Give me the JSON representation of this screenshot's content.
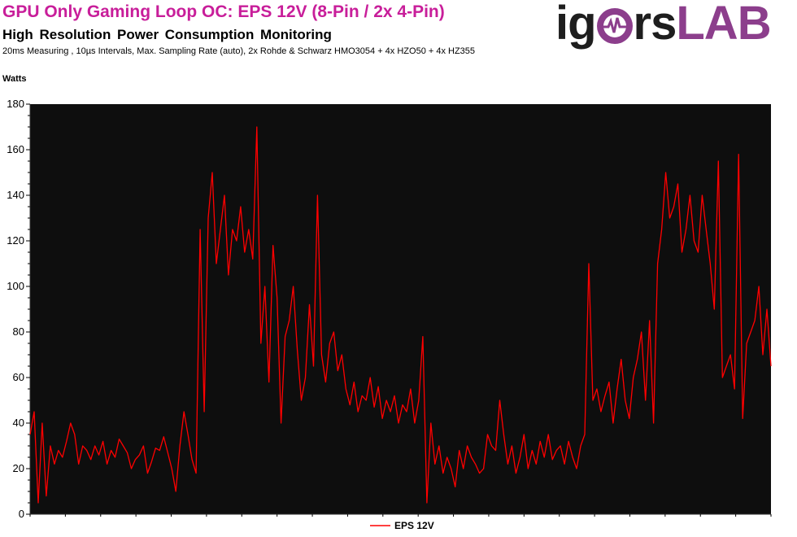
{
  "header": {
    "title": "GPU Only Gaming Loop OC: EPS 12V (8-Pin / 2x 4-Pin)",
    "subtitle": "High Resolution Power Consumption Monitoring",
    "details": "20ms Measuring , 10µs Intervals, Max. Sampling Rate (auto),  2x Rohde & Schwarz HMO3054 + 4x HZO50 + 4x HZ355"
  },
  "logo": {
    "text_left": "ig",
    "text_mid": "rs",
    "text_right": "LAB"
  },
  "colors": {
    "title": "#c81e9a",
    "plot_bg": "#0e0e0e",
    "series": "#ff0000",
    "logo_accent": "#8c3e8c"
  },
  "chart_data": {
    "type": "line",
    "title": "GPU Only Gaming Loop OC: EPS 12V (8-Pin / 2x 4-Pin)",
    "ylabel": "Watts",
    "xlabel": "",
    "ylim": [
      0,
      180
    ],
    "yticks": [
      0,
      20,
      40,
      60,
      80,
      100,
      120,
      140,
      160,
      180
    ],
    "grid": false,
    "legend": "bottom-center",
    "series": [
      {
        "name": "EPS 12V",
        "color": "#ff0000",
        "x": [
          0,
          5,
          10,
          15,
          20,
          25,
          30,
          35,
          40,
          45,
          50,
          55,
          60,
          65,
          70,
          75,
          80,
          85,
          90,
          95,
          100,
          105,
          110,
          115,
          120,
          125,
          130,
          135,
          140,
          145,
          150,
          155,
          160,
          165,
          170,
          175,
          180,
          185,
          190,
          195,
          200,
          205,
          210,
          215,
          220,
          225,
          230,
          235,
          240,
          245,
          250,
          255,
          260,
          265,
          270,
          275,
          280,
          285,
          290,
          295,
          300,
          305,
          310,
          315,
          320,
          325,
          330,
          335,
          340,
          345,
          350,
          355,
          360,
          365,
          370,
          375,
          380,
          385,
          390,
          395,
          400,
          405,
          410,
          415,
          420,
          425,
          430,
          435,
          440,
          445,
          450,
          455,
          460,
          465,
          470,
          475,
          480,
          485,
          490,
          495,
          500,
          505,
          510,
          515,
          520,
          525,
          530,
          535,
          540,
          545,
          550,
          555,
          560,
          565,
          570,
          575,
          580,
          585,
          590,
          595,
          600,
          605,
          610,
          615,
          620,
          625,
          630,
          635,
          640,
          645,
          650,
          655,
          660,
          665,
          670,
          675,
          680,
          685,
          690,
          695,
          700,
          705,
          710,
          715,
          720,
          725,
          730,
          735,
          740,
          745,
          750,
          755,
          760,
          765,
          770,
          775,
          780,
          785,
          790,
          795,
          800,
          805,
          810,
          815,
          820,
          825,
          830,
          835,
          840,
          845,
          850,
          855,
          860,
          865,
          870,
          875,
          880,
          885,
          890,
          895,
          900,
          905,
          910,
          915
        ],
        "values": [
          35,
          45,
          5,
          40,
          8,
          30,
          22,
          28,
          25,
          32,
          40,
          35,
          22,
          30,
          28,
          24,
          30,
          26,
          32,
          22,
          28,
          25,
          33,
          30,
          27,
          20,
          24,
          26,
          30,
          18,
          23,
          29,
          28,
          34,
          27,
          20,
          10,
          30,
          45,
          35,
          24,
          18,
          125,
          45,
          130,
          150,
          110,
          125,
          140,
          105,
          125,
          120,
          135,
          115,
          125,
          112,
          170,
          75,
          100,
          58,
          118,
          95,
          40,
          78,
          85,
          100,
          72,
          50,
          60,
          92,
          65,
          140,
          70,
          58,
          75,
          80,
          63,
          70,
          55,
          48,
          58,
          45,
          52,
          50,
          60,
          47,
          56,
          42,
          50,
          45,
          52,
          40,
          48,
          45,
          55,
          40,
          50,
          78,
          5,
          40,
          22,
          30,
          18,
          25,
          20,
          12,
          28,
          20,
          30,
          25,
          22,
          18,
          20,
          35,
          30,
          28,
          50,
          35,
          22,
          30,
          18,
          25,
          35,
          20,
          28,
          22,
          32,
          25,
          35,
          24,
          28,
          30,
          22,
          32,
          25,
          20,
          30,
          35,
          110,
          50,
          55,
          45,
          52,
          58,
          40,
          55,
          68,
          50,
          42,
          60,
          68,
          80,
          50,
          85,
          40,
          110,
          125,
          150,
          130,
          135,
          145,
          115,
          125,
          140,
          120,
          115,
          140,
          125,
          110,
          90,
          155,
          60,
          65,
          70,
          55,
          158,
          42,
          75,
          80,
          85,
          100,
          70,
          90,
          65
        ]
      }
    ]
  }
}
